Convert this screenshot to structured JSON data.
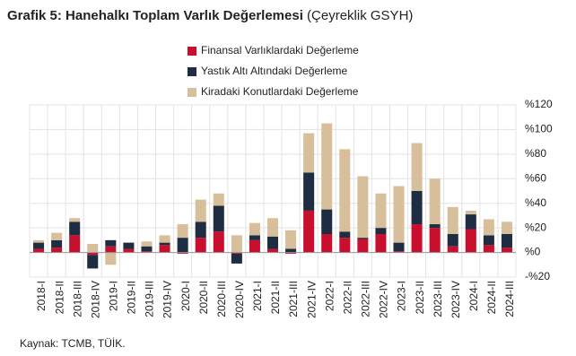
{
  "chart_data": {
    "type": "stacked-bar",
    "title": "Grafik 5: Hanehalkı Toplam Varlık Değerlemesi",
    "subtitle": "(Çeyreklik GSYH)",
    "source": "Kaynak: TCMB, TÜİK.",
    "categories": [
      "2018-I",
      "2018-II",
      "2018-III",
      "2018-IV",
      "2019-I",
      "2019-II",
      "2019-III",
      "2019-IV",
      "2020-I",
      "2020-II",
      "2020-III",
      "2020-IV",
      "2021-I",
      "2021-II",
      "2021-III",
      "2021-IV",
      "2022-I",
      "2022-II",
      "2022-III",
      "2022-IV",
      "2023-I",
      "2023-II",
      "2023-III",
      "2023-IV",
      "2024-I",
      "2024-II",
      "2024-III"
    ],
    "series": [
      {
        "name": "Finansal Varlıklardaki Değerleme",
        "color": "#c8102e",
        "values": [
          3,
          4,
          14,
          -2,
          5,
          3,
          1,
          6,
          -1,
          12,
          17,
          -1,
          10,
          3,
          -1,
          34,
          15,
          12,
          11,
          15,
          1,
          23,
          20,
          5,
          19,
          6,
          4
        ]
      },
      {
        "name": "Yastık Altı Altındaki Değerleme",
        "color": "#1f2d42",
        "values": [
          5,
          6,
          11,
          -11,
          5,
          5,
          4,
          2,
          12,
          13,
          21,
          -8,
          4,
          10,
          3,
          31,
          20,
          5,
          1,
          5,
          7,
          27,
          3,
          10,
          12,
          8,
          11
        ]
      },
      {
        "name": "Kiradaki Konutlardaki Değerleme",
        "color": "#d8bf9b",
        "values": [
          2,
          6,
          3,
          7,
          -10,
          0,
          4,
          6,
          11,
          18,
          10,
          14,
          10,
          15,
          15,
          32,
          70,
          67,
          50,
          28,
          46,
          39,
          37,
          22,
          3,
          13,
          10
        ]
      }
    ],
    "ylim": [
      -20,
      120
    ],
    "yticks": [
      {
        "value": -20,
        "label": "-%20"
      },
      {
        "value": 0,
        "label": "%0"
      },
      {
        "value": 20,
        "label": "%20"
      },
      {
        "value": 40,
        "label": "%40"
      },
      {
        "value": 60,
        "label": "%60"
      },
      {
        "value": 80,
        "label": "%80"
      },
      {
        "value": 100,
        "label": "%100"
      },
      {
        "value": 120,
        "label": "%120"
      }
    ],
    "grid": true
  }
}
